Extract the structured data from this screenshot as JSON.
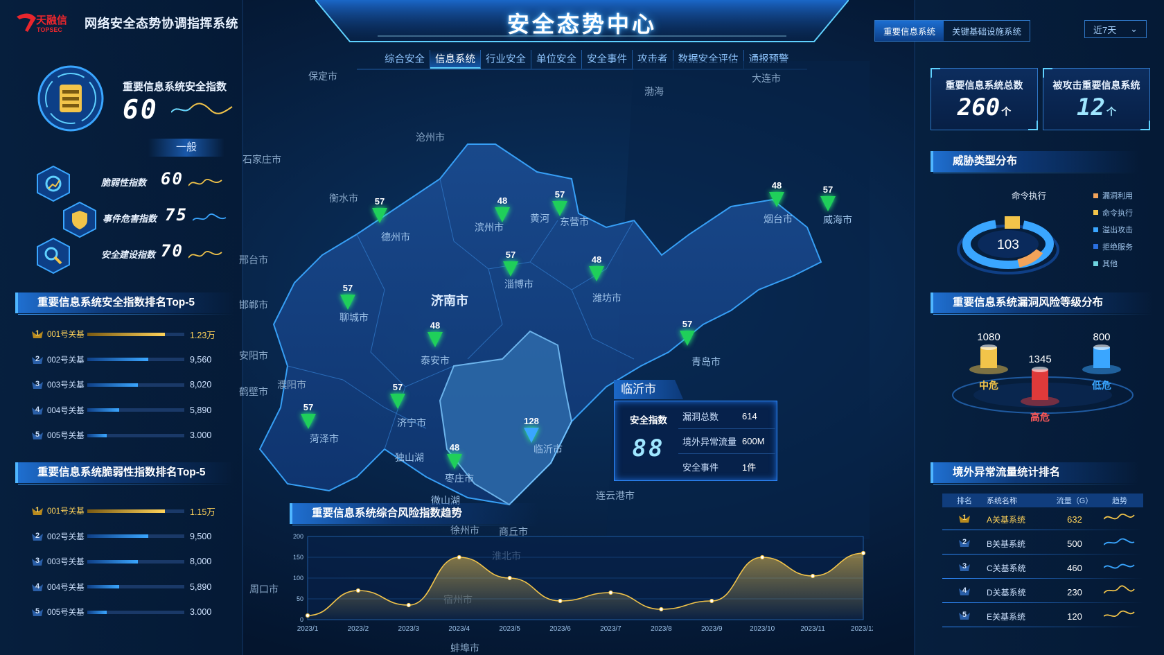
{
  "app": {
    "logo_text": "天融信",
    "logo_sub": "TOPSEC",
    "system_name": "网络安全态势协调指挥系统",
    "main_title": "安全态势中心"
  },
  "nav": [
    "综合安全",
    "信息系统",
    "行业安全",
    "单位安全",
    "安全事件",
    "攻击者",
    "数据安全评估",
    "通报预警"
  ],
  "nav_active": 1,
  "system_tabs": [
    "重要信息系统",
    "关键基础设施系统"
  ],
  "system_tab_active": 0,
  "range": {
    "value": "近7天",
    "icon": "chevron-down-icon"
  },
  "left": {
    "score": {
      "label": "重要信息系统安全指数",
      "value": "60",
      "level": "一般"
    },
    "sub_indices": [
      {
        "label": "脆弱性指数",
        "value": "60",
        "icon": "gear-chart-icon"
      },
      {
        "label": "事件危害指数",
        "value": "75",
        "icon": "shield-icon"
      },
      {
        "label": "安全建设指数",
        "value": "70",
        "icon": "wrench-icon"
      }
    ],
    "ranking1": {
      "title": "重要信息系统安全指数排名Top-5",
      "rows": [
        {
          "rank": "1",
          "name": "001号关基",
          "value": "1.23万",
          "fraction": 0.8
        },
        {
          "rank": "2",
          "name": "002号关基",
          "value": "9,560",
          "fraction": 0.63
        },
        {
          "rank": "3",
          "name": "003号关基",
          "value": "8,020",
          "fraction": 0.52
        },
        {
          "rank": "4",
          "name": "004号关基",
          "value": "5,890",
          "fraction": 0.33
        },
        {
          "rank": "5",
          "name": "005号关基",
          "value": "3.000",
          "fraction": 0.2
        }
      ]
    },
    "ranking2": {
      "title": "重要信息系统脆弱性指数排名Top-5",
      "rows": [
        {
          "rank": "1",
          "name": "001号关基",
          "value": "1.15万",
          "fraction": 0.8
        },
        {
          "rank": "2",
          "name": "002号关基",
          "value": "9,500",
          "fraction": 0.63
        },
        {
          "rank": "3",
          "name": "003号关基",
          "value": "8,000",
          "fraction": 0.52
        },
        {
          "rank": "4",
          "name": "004号关基",
          "value": "5,890",
          "fraction": 0.33
        },
        {
          "rank": "5",
          "name": "005号关基",
          "value": "3.000",
          "fraction": 0.2
        }
      ]
    }
  },
  "map": {
    "cities_outside": [
      "保定市",
      "沧州市",
      "石家庄市",
      "衡水市",
      "邢台市",
      "邯郸市",
      "安阳市",
      "濮阳市",
      "鹤壁市",
      "商丘市",
      "徐州市",
      "淮北市",
      "宿州市",
      "周口市",
      "连云港市",
      "大连市",
      "渤海",
      "蚌埠市"
    ],
    "cities_inside": [
      "德州市",
      "滨州市",
      "东营市",
      "黄河",
      "烟台市",
      "威海市",
      "淄博市",
      "潍坊市",
      "济南市",
      "聊城市",
      "泰安市",
      "青岛市",
      "济宁市",
      "菏泽市",
      "临沂市",
      "独山湖",
      "枣庄市",
      "微山湖"
    ],
    "pins": [
      {
        "value": "57",
        "city": "德州市"
      },
      {
        "value": "48",
        "city": "滨州市"
      },
      {
        "value": "57",
        "city": "东营市"
      },
      {
        "value": "48",
        "city": "烟台市"
      },
      {
        "value": "57",
        "city": "威海市"
      },
      {
        "value": "57",
        "city": "淄博市"
      },
      {
        "value": "48",
        "city": "潍坊市"
      },
      {
        "value": "57",
        "city": "聊城市"
      },
      {
        "value": "48",
        "city": "泰安市"
      },
      {
        "value": "57",
        "city": "青岛市"
      },
      {
        "value": "57",
        "city": "济宁市"
      },
      {
        "value": "57",
        "city": "菏泽市"
      },
      {
        "value": "48",
        "city": "枣庄市"
      },
      {
        "value": "128",
        "city": "临沂市"
      }
    ],
    "tooltip": {
      "city": "临沂市",
      "index_label": "安全指数",
      "index_value": "88",
      "rows": [
        {
          "key": "漏洞总数",
          "value": "614"
        },
        {
          "key": "境外异常流量",
          "value": "600M"
        },
        {
          "key": "安全事件",
          "value": "1件"
        }
      ]
    }
  },
  "trend_title": "重要信息系统综合风险指数趋势",
  "chart_data": {
    "type": "area",
    "title": "重要信息系统综合风险指数趋势",
    "x": [
      "2023/1",
      "2023/2",
      "2023/3",
      "2023/4",
      "2023/5",
      "2023/6",
      "2023/7",
      "2023/8",
      "2023/9",
      "2023/10",
      "2023/11",
      "2023/12"
    ],
    "values": [
      10,
      70,
      35,
      150,
      100,
      45,
      65,
      25,
      45,
      150,
      105,
      160
    ],
    "ylim": [
      0,
      200
    ],
    "yticks": [
      0,
      50,
      100,
      150,
      200
    ],
    "grid": true,
    "color": "#f2c44a"
  },
  "right": {
    "stats": [
      {
        "label": "重要信息系统总数",
        "value": "260",
        "unit": "个"
      },
      {
        "label": "被攻击重要信息系统",
        "value": "12",
        "unit": "个"
      }
    ],
    "threat": {
      "title": "威胁类型分布",
      "center_value": "103",
      "caption": "命令执行",
      "legend": [
        {
          "name": "漏洞利用",
          "color": "#f2a35a"
        },
        {
          "name": "命令执行",
          "color": "#f2c44a"
        },
        {
          "name": "溢出攻击",
          "color": "#3aa6ff"
        },
        {
          "name": "拒绝服务",
          "color": "#2a6fe0"
        },
        {
          "name": "其他",
          "color": "#6fd3e0"
        }
      ]
    },
    "risk": {
      "title": "重要信息系统漏洞风险等级分布",
      "items": [
        {
          "label": "中危",
          "value": "1080",
          "color": "#f2c44a"
        },
        {
          "label": "高危",
          "value": "1345",
          "color": "#e03a3a"
        },
        {
          "label": "低危",
          "value": "800",
          "color": "#3aa6ff"
        }
      ]
    },
    "flow": {
      "title": "境外异常流量统计排名",
      "headers": [
        "排名",
        "系统名称",
        "流量（G）",
        "趋势"
      ],
      "rows": [
        {
          "rank": "1",
          "name": "A关基系统",
          "flow": "632"
        },
        {
          "rank": "2",
          "name": "B关基系统",
          "flow": "500"
        },
        {
          "rank": "3",
          "name": "C关基系统",
          "flow": "460"
        },
        {
          "rank": "4",
          "name": "D关基系统",
          "flow": "230"
        },
        {
          "rank": "5",
          "name": "E关基系统",
          "flow": "120"
        }
      ]
    }
  },
  "colors": {
    "accent": "#3aa6ff",
    "gold": "#ffd35a",
    "pin": "#1fcf5a",
    "bg": "#04152e"
  }
}
